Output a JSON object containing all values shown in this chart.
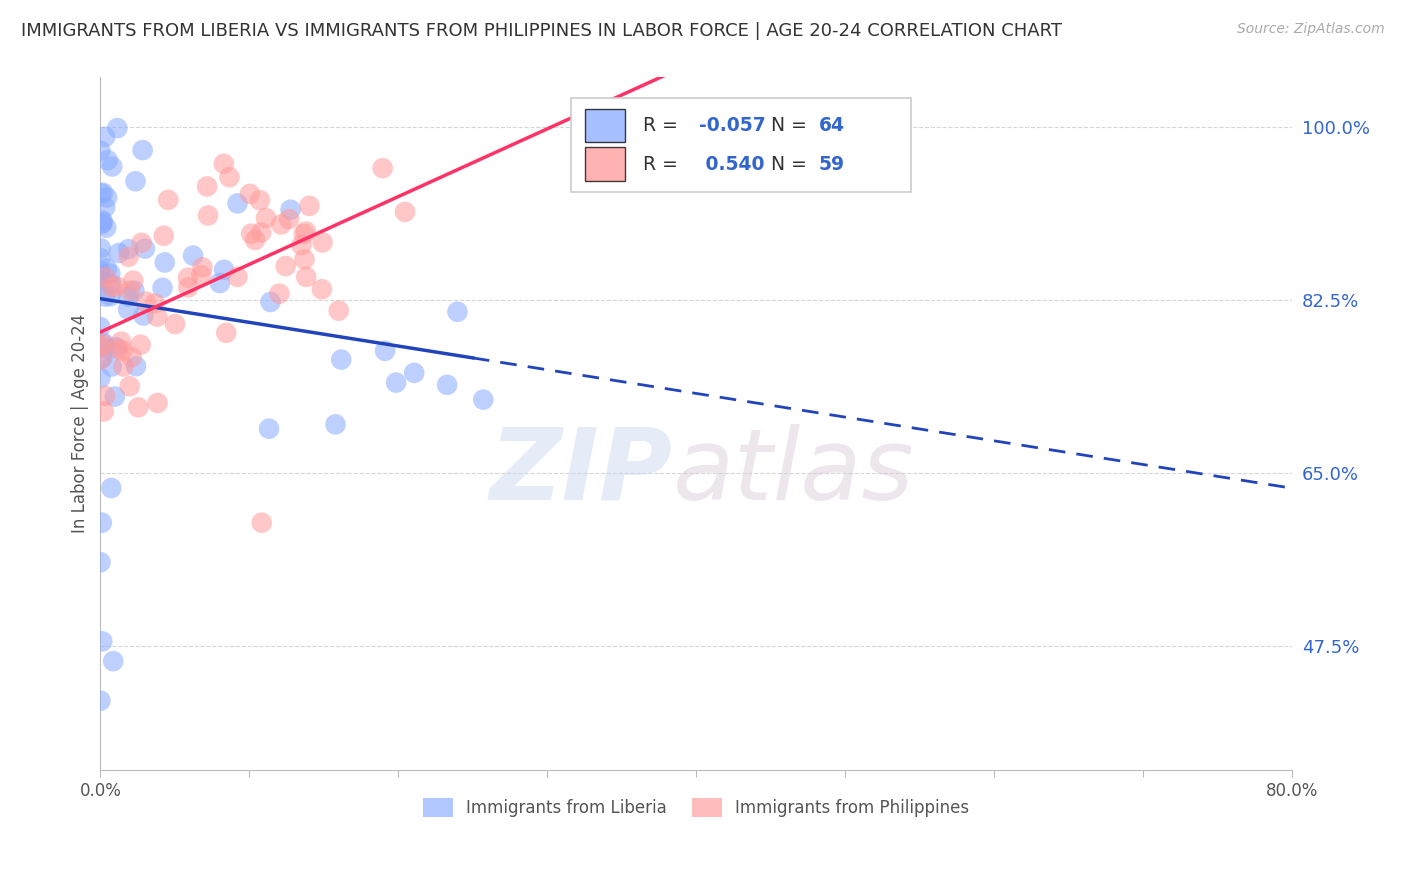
{
  "title": "IMMIGRANTS FROM LIBERIA VS IMMIGRANTS FROM PHILIPPINES IN LABOR FORCE | AGE 20-24 CORRELATION CHART",
  "source": "Source: ZipAtlas.com",
  "ylabel": "In Labor Force | Age 20-24",
  "xlim": [
    0.0,
    0.8
  ],
  "ylim": [
    0.35,
    1.05
  ],
  "yticks": [
    0.475,
    0.65,
    0.825,
    1.0
  ],
  "yticklabels": [
    "47.5%",
    "65.0%",
    "82.5%",
    "100.0%"
  ],
  "liberia_R": -0.057,
  "liberia_N": 64,
  "philippines_R": 0.54,
  "philippines_N": 59,
  "background_color": "#ffffff",
  "grid_color": "#cccccc",
  "blue_color": "#88aaff",
  "pink_color": "#ff9999",
  "blue_line_color": "#2244bb",
  "pink_line_color": "#ff3366",
  "tick_color": "#3366cc",
  "label_color": "#555555"
}
